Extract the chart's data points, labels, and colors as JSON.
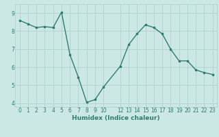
{
  "x": [
    0,
    1,
    2,
    3,
    4,
    5,
    6,
    7,
    8,
    9,
    10,
    12,
    13,
    14,
    15,
    16,
    17,
    18,
    19,
    20,
    21,
    22,
    23
  ],
  "y": [
    8.6,
    8.4,
    8.2,
    8.25,
    8.2,
    9.05,
    6.7,
    5.45,
    4.05,
    4.2,
    4.9,
    6.05,
    7.25,
    7.85,
    8.35,
    8.2,
    7.85,
    7.0,
    6.35,
    6.35,
    5.85,
    5.7,
    5.6
  ],
  "xlabel": "Humidex (Indice chaleur)",
  "xlim": [
    -0.5,
    23.5
  ],
  "ylim": [
    3.8,
    9.5
  ],
  "yticks": [
    4,
    5,
    6,
    7,
    8,
    9
  ],
  "xticks": [
    0,
    1,
    2,
    3,
    4,
    5,
    6,
    7,
    8,
    9,
    10,
    12,
    13,
    14,
    15,
    16,
    17,
    18,
    19,
    20,
    21,
    22,
    23
  ],
  "line_color": "#2e7d6e",
  "bg_color": "#cce8e4",
  "grid_color": "#aaccc8",
  "label_color": "#2e7d6e"
}
